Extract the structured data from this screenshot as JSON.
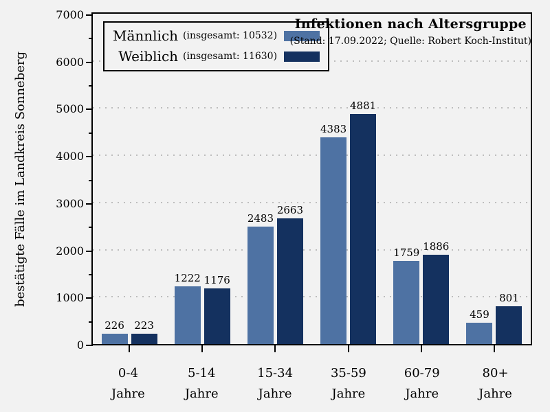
{
  "legend": {
    "items": [
      {
        "name": "Männlich",
        "total": "(insgesamt: 10532)",
        "color": "#4E72A3"
      },
      {
        "name": "Weiblich",
        "total": "(insgesamt: 11630)",
        "color": "#14315F"
      }
    ]
  },
  "colors": {
    "background": "#F2F2F2",
    "grid": "#BDBDBD",
    "axis": "#000000",
    "maennlich": "#4E72A3",
    "weiblich": "#14315F"
  },
  "chart_data": {
    "type": "bar",
    "title": "Infektionen nach Altersgruppe",
    "subtitle": "(Stand: 17.09.2022; Quelle: Robert Koch-Institut)",
    "ylabel": "bestätigte Fälle im Landkreis Sonneberg",
    "xlabel": "",
    "categories": [
      "0-4",
      "5-14",
      "15-34",
      "35-59",
      "60-79",
      "80+"
    ],
    "category_unit": "Jahre",
    "series": [
      {
        "name": "Männlich (insgesamt: 10532)",
        "key": "maennlich",
        "color": "#4E72A3",
        "values": [
          226,
          1222,
          2483,
          4383,
          1759,
          459
        ]
      },
      {
        "name": "Weiblich (insgesamt: 11630)",
        "key": "weiblich",
        "color": "#14315F",
        "values": [
          223,
          1176,
          2663,
          4881,
          1886,
          801
        ]
      }
    ],
    "ylim": [
      0,
      7000
    ],
    "ytick_step": 1000,
    "yminor_step": 500,
    "grid": true,
    "grid_style": "dotted",
    "legend_position": "upper left",
    "bar_value_labels": true
  }
}
